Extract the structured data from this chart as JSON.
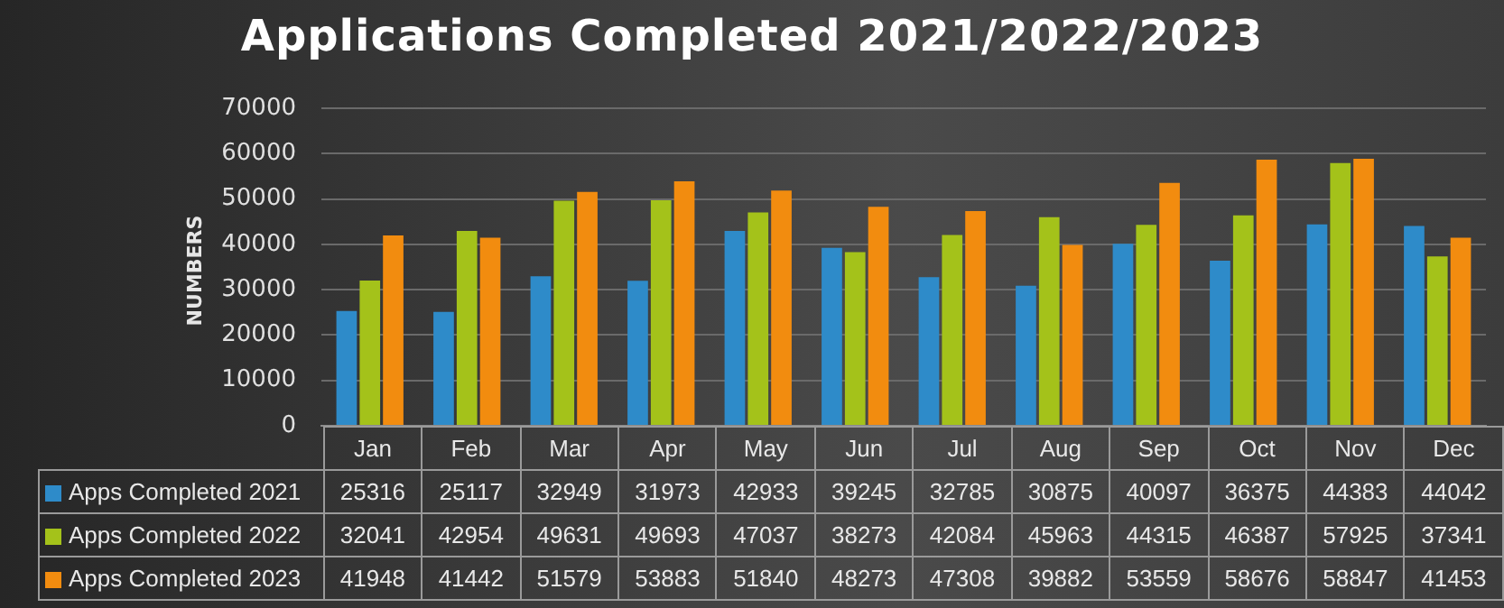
{
  "chart_data": {
    "type": "bar",
    "title": "Applications Completed 2021/2022/2023",
    "ylabel": "NUMBERS",
    "categories": [
      "Jan",
      "Feb",
      "Mar",
      "Apr",
      "May",
      "Jun",
      "Jul",
      "Aug",
      "Sep",
      "Oct",
      "Nov",
      "Dec"
    ],
    "series": [
      {
        "name": "Apps Completed 2021",
        "color": "#2e8bc9",
        "values": [
          25316,
          25117,
          32949,
          31973,
          42933,
          39245,
          32785,
          30875,
          40097,
          36375,
          44383,
          44042
        ]
      },
      {
        "name": "Apps Completed 2022",
        "color": "#a4c21a",
        "values": [
          32041,
          42954,
          49631,
          49693,
          47037,
          38273,
          42084,
          45963,
          44315,
          46387,
          57925,
          37341
        ]
      },
      {
        "name": "Apps Completed 2023",
        "color": "#f28c0f",
        "values": [
          41948,
          41442,
          51579,
          53883,
          51840,
          48273,
          47308,
          39882,
          53559,
          58676,
          58847,
          41453
        ]
      }
    ],
    "ylim": [
      0,
      70000
    ],
    "yticks": [
      0,
      10000,
      20000,
      30000,
      40000,
      50000,
      60000,
      70000
    ],
    "grid": "y",
    "legend": "bottom",
    "data_labels": true
  }
}
